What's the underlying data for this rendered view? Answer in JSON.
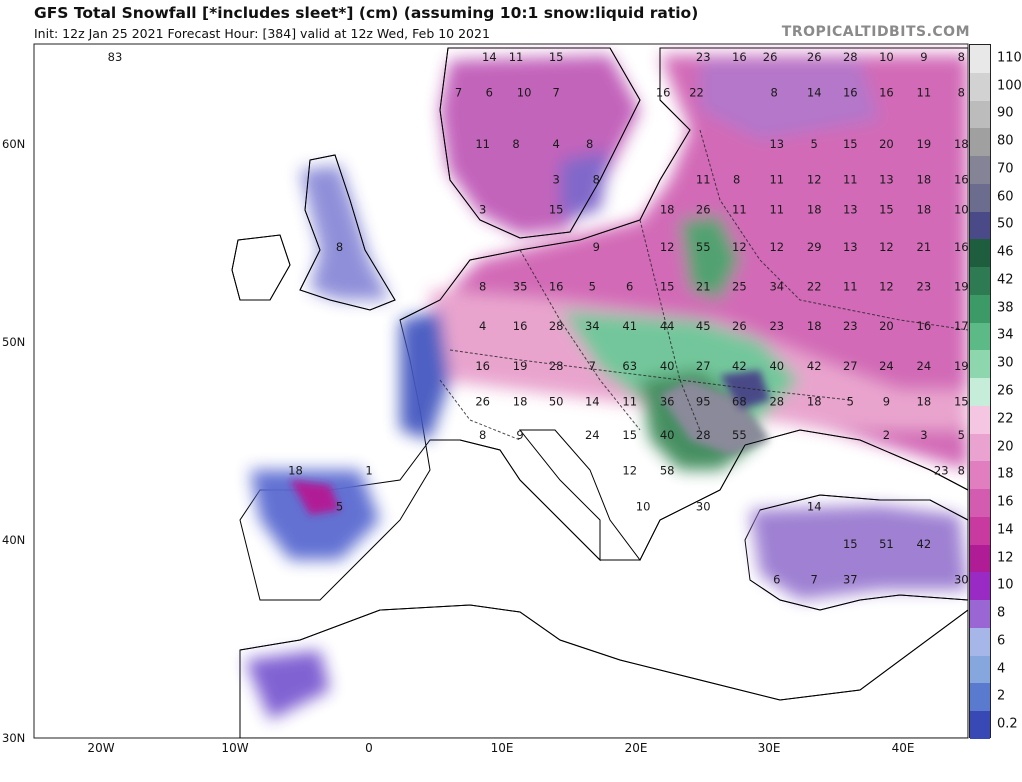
{
  "header": {
    "title": "GFS Total Snowfall [*includes sleet*] (cm) (assuming 10:1 snow:liquid ratio)",
    "subtitle": "Init: 12z Jan 25 2021   Forecast Hour: [384]   valid at 12z Wed, Feb 10 2021",
    "credit": "TROPICALTIDBITS.COM"
  },
  "legend": {
    "levels": [
      {
        "label": "110",
        "color": "#e8e8e8"
      },
      {
        "label": "100",
        "color": "#d2d2d2"
      },
      {
        "label": "90",
        "color": "#bcbcbc"
      },
      {
        "label": "80",
        "color": "#a0a0a0"
      },
      {
        "label": "70",
        "color": "#848496"
      },
      {
        "label": "60",
        "color": "#6c6c8e"
      },
      {
        "label": "50",
        "color": "#4a4a88"
      },
      {
        "label": "46",
        "color": "#1e5e3e"
      },
      {
        "label": "42",
        "color": "#2e7a52"
      },
      {
        "label": "38",
        "color": "#3c9a66"
      },
      {
        "label": "34",
        "color": "#5cba86"
      },
      {
        "label": "30",
        "color": "#8ed6ae"
      },
      {
        "label": "26",
        "color": "#c6ecda"
      },
      {
        "label": "22",
        "color": "#f4c6e2"
      },
      {
        "label": "20",
        "color": "#eaa2d0"
      },
      {
        "label": "18",
        "color": "#e07ec0"
      },
      {
        "label": "16",
        "color": "#d45cb0"
      },
      {
        "label": "14",
        "color": "#c83aa0"
      },
      {
        "label": "12",
        "color": "#b01c96"
      },
      {
        "label": "10",
        "color": "#9a2ac4"
      },
      {
        "label": "8",
        "color": "#9a66d4"
      },
      {
        "label": "6",
        "color": "#a6b6e8"
      },
      {
        "label": "4",
        "color": "#86a6de"
      },
      {
        "label": "2",
        "color": "#5a7ad0"
      },
      {
        "label": "0.2",
        "color": "#3848b4"
      }
    ]
  },
  "axes": {
    "latitudes": [
      "60N",
      "50N",
      "40N",
      "30N"
    ],
    "longitudes": [
      "20W",
      "10W",
      "0",
      "10E",
      "20E",
      "30E",
      "40E"
    ]
  },
  "snow_values": [
    {
      "v": "83",
      "lon": -19,
      "lat": 64.4
    },
    {
      "v": "14",
      "lon": 9,
      "lat": 64.4
    },
    {
      "v": "11",
      "lon": 11,
      "lat": 64.4
    },
    {
      "v": "15",
      "lon": 14,
      "lat": 64.4
    },
    {
      "v": "23",
      "lon": 25,
      "lat": 64.4
    },
    {
      "v": "16",
      "lon": 27.7,
      "lat": 64.4
    },
    {
      "v": "26",
      "lon": 30,
      "lat": 64.4
    },
    {
      "v": "26",
      "lon": 33.3,
      "lat": 64.4
    },
    {
      "v": "28",
      "lon": 36,
      "lat": 64.4
    },
    {
      "v": "10",
      "lon": 38.7,
      "lat": 64.4
    },
    {
      "v": "9",
      "lon": 41.5,
      "lat": 64.4
    },
    {
      "v": "8",
      "lon": 44.3,
      "lat": 64.4
    },
    {
      "v": "7",
      "lon": 6.7,
      "lat": 62.6
    },
    {
      "v": "6",
      "lon": 9,
      "lat": 62.6
    },
    {
      "v": "10",
      "lon": 11.6,
      "lat": 62.6
    },
    {
      "v": "7",
      "lon": 14,
      "lat": 62.6
    },
    {
      "v": "16",
      "lon": 22,
      "lat": 62.6
    },
    {
      "v": "22",
      "lon": 24.5,
      "lat": 62.6
    },
    {
      "v": "8",
      "lon": 30.3,
      "lat": 62.6
    },
    {
      "v": "14",
      "lon": 33.3,
      "lat": 62.6
    },
    {
      "v": "16",
      "lon": 36,
      "lat": 62.6
    },
    {
      "v": "16",
      "lon": 38.7,
      "lat": 62.6
    },
    {
      "v": "11",
      "lon": 41.5,
      "lat": 62.6
    },
    {
      "v": "8",
      "lon": 44.3,
      "lat": 62.6
    },
    {
      "v": "11",
      "lon": 8.5,
      "lat": 60.0
    },
    {
      "v": "8",
      "lon": 11,
      "lat": 60.0
    },
    {
      "v": "4",
      "lon": 14,
      "lat": 60.0
    },
    {
      "v": "8",
      "lon": 16.5,
      "lat": 60.0
    },
    {
      "v": "13",
      "lon": 30.5,
      "lat": 60.0
    },
    {
      "v": "5",
      "lon": 33.3,
      "lat": 60.0
    },
    {
      "v": "15",
      "lon": 36,
      "lat": 60.0
    },
    {
      "v": "20",
      "lon": 38.7,
      "lat": 60.0
    },
    {
      "v": "19",
      "lon": 41.5,
      "lat": 60.0
    },
    {
      "v": "18",
      "lon": 44.3,
      "lat": 60.0
    },
    {
      "v": "3",
      "lon": 14,
      "lat": 58.2
    },
    {
      "v": "8",
      "lon": 17,
      "lat": 58.2
    },
    {
      "v": "11",
      "lon": 25,
      "lat": 58.2
    },
    {
      "v": "8",
      "lon": 27.5,
      "lat": 58.2
    },
    {
      "v": "11",
      "lon": 30.5,
      "lat": 58.2
    },
    {
      "v": "12",
      "lon": 33.3,
      "lat": 58.2
    },
    {
      "v": "11",
      "lon": 36,
      "lat": 58.2
    },
    {
      "v": "13",
      "lon": 38.7,
      "lat": 58.2
    },
    {
      "v": "18",
      "lon": 41.5,
      "lat": 58.2
    },
    {
      "v": "16",
      "lon": 44.3,
      "lat": 58.2
    },
    {
      "v": "3",
      "lon": 8.5,
      "lat": 56.7
    },
    {
      "v": "15",
      "lon": 14,
      "lat": 56.7
    },
    {
      "v": "18",
      "lon": 22.3,
      "lat": 56.7
    },
    {
      "v": "26",
      "lon": 25,
      "lat": 56.7
    },
    {
      "v": "11",
      "lon": 27.7,
      "lat": 56.7
    },
    {
      "v": "11",
      "lon": 30.5,
      "lat": 56.7
    },
    {
      "v": "18",
      "lon": 33.3,
      "lat": 56.7
    },
    {
      "v": "13",
      "lon": 36,
      "lat": 56.7
    },
    {
      "v": "15",
      "lon": 38.7,
      "lat": 56.7
    },
    {
      "v": "18",
      "lon": 41.5,
      "lat": 56.7
    },
    {
      "v": "10",
      "lon": 44.3,
      "lat": 56.7
    },
    {
      "v": "8",
      "lon": -2.2,
      "lat": 54.8
    },
    {
      "v": "9",
      "lon": 17,
      "lat": 54.8
    },
    {
      "v": "12",
      "lon": 22.3,
      "lat": 54.8
    },
    {
      "v": "55",
      "lon": 25,
      "lat": 54.8
    },
    {
      "v": "12",
      "lon": 27.7,
      "lat": 54.8
    },
    {
      "v": "12",
      "lon": 30.5,
      "lat": 54.8
    },
    {
      "v": "29",
      "lon": 33.3,
      "lat": 54.8
    },
    {
      "v": "13",
      "lon": 36,
      "lat": 54.8
    },
    {
      "v": "12",
      "lon": 38.7,
      "lat": 54.8
    },
    {
      "v": "21",
      "lon": 41.5,
      "lat": 54.8
    },
    {
      "v": "16",
      "lon": 44.3,
      "lat": 54.8
    },
    {
      "v": "8",
      "lon": 8.5,
      "lat": 52.8
    },
    {
      "v": "35",
      "lon": 11.3,
      "lat": 52.8
    },
    {
      "v": "16",
      "lon": 14,
      "lat": 52.8
    },
    {
      "v": "5",
      "lon": 16.7,
      "lat": 52.8
    },
    {
      "v": "6",
      "lon": 19.5,
      "lat": 52.8
    },
    {
      "v": "15",
      "lon": 22.3,
      "lat": 52.8
    },
    {
      "v": "21",
      "lon": 25,
      "lat": 52.8
    },
    {
      "v": "25",
      "lon": 27.7,
      "lat": 52.8
    },
    {
      "v": "34",
      "lon": 30.5,
      "lat": 52.8
    },
    {
      "v": "22",
      "lon": 33.3,
      "lat": 52.8
    },
    {
      "v": "11",
      "lon": 36,
      "lat": 52.8
    },
    {
      "v": "12",
      "lon": 38.7,
      "lat": 52.8
    },
    {
      "v": "23",
      "lon": 41.5,
      "lat": 52.8
    },
    {
      "v": "19",
      "lon": 44.3,
      "lat": 52.8
    },
    {
      "v": "4",
      "lon": 8.5,
      "lat": 50.8
    },
    {
      "v": "16",
      "lon": 11.3,
      "lat": 50.8
    },
    {
      "v": "28",
      "lon": 14,
      "lat": 50.8
    },
    {
      "v": "34",
      "lon": 16.7,
      "lat": 50.8
    },
    {
      "v": "41",
      "lon": 19.5,
      "lat": 50.8
    },
    {
      "v": "44",
      "lon": 22.3,
      "lat": 50.8
    },
    {
      "v": "45",
      "lon": 25,
      "lat": 50.8
    },
    {
      "v": "26",
      "lon": 27.7,
      "lat": 50.8
    },
    {
      "v": "23",
      "lon": 30.5,
      "lat": 50.8
    },
    {
      "v": "18",
      "lon": 33.3,
      "lat": 50.8
    },
    {
      "v": "23",
      "lon": 36,
      "lat": 50.8
    },
    {
      "v": "20",
      "lon": 38.7,
      "lat": 50.8
    },
    {
      "v": "16",
      "lon": 41.5,
      "lat": 50.8
    },
    {
      "v": "17",
      "lon": 44.3,
      "lat": 50.8
    },
    {
      "v": "16",
      "lon": 8.5,
      "lat": 48.8
    },
    {
      "v": "19",
      "lon": 11.3,
      "lat": 48.8
    },
    {
      "v": "28",
      "lon": 14,
      "lat": 48.8
    },
    {
      "v": "7",
      "lon": 16.7,
      "lat": 48.8
    },
    {
      "v": "63",
      "lon": 19.5,
      "lat": 48.8
    },
    {
      "v": "40",
      "lon": 22.3,
      "lat": 48.8
    },
    {
      "v": "27",
      "lon": 25,
      "lat": 48.8
    },
    {
      "v": "42",
      "lon": 27.7,
      "lat": 48.8
    },
    {
      "v": "40",
      "lon": 30.5,
      "lat": 48.8
    },
    {
      "v": "42",
      "lon": 33.3,
      "lat": 48.8
    },
    {
      "v": "27",
      "lon": 36,
      "lat": 48.8
    },
    {
      "v": "24",
      "lon": 38.7,
      "lat": 48.8
    },
    {
      "v": "24",
      "lon": 41.5,
      "lat": 48.8
    },
    {
      "v": "19",
      "lon": 44.3,
      "lat": 48.8
    },
    {
      "v": "26",
      "lon": 8.5,
      "lat": 47.0
    },
    {
      "v": "18",
      "lon": 11.3,
      "lat": 47.0
    },
    {
      "v": "50",
      "lon": 14,
      "lat": 47.0
    },
    {
      "v": "14",
      "lon": 16.7,
      "lat": 47.0
    },
    {
      "v": "11",
      "lon": 19.5,
      "lat": 47.0
    },
    {
      "v": "36",
      "lon": 22.3,
      "lat": 47.0
    },
    {
      "v": "95",
      "lon": 25,
      "lat": 47.0
    },
    {
      "v": "68",
      "lon": 27.7,
      "lat": 47.0
    },
    {
      "v": "28",
      "lon": 30.5,
      "lat": 47.0
    },
    {
      "v": "18",
      "lon": 33.3,
      "lat": 47.0
    },
    {
      "v": "5",
      "lon": 36,
      "lat": 47.0
    },
    {
      "v": "9",
      "lon": 38.7,
      "lat": 47.0
    },
    {
      "v": "18",
      "lon": 41.5,
      "lat": 47.0
    },
    {
      "v": "15",
      "lon": 44.3,
      "lat": 47.0
    },
    {
      "v": "8",
      "lon": 8.5,
      "lat": 45.3
    },
    {
      "v": "9",
      "lon": 11.3,
      "lat": 45.3
    },
    {
      "v": "24",
      "lon": 16.7,
      "lat": 45.3
    },
    {
      "v": "15",
      "lon": 19.5,
      "lat": 45.3
    },
    {
      "v": "40",
      "lon": 22.3,
      "lat": 45.3
    },
    {
      "v": "28",
      "lon": 25,
      "lat": 45.3
    },
    {
      "v": "55",
      "lon": 27.7,
      "lat": 45.3
    },
    {
      "v": "2",
      "lon": 38.7,
      "lat": 45.3
    },
    {
      "v": "3",
      "lon": 41.5,
      "lat": 45.3
    },
    {
      "v": "5",
      "lon": 44.3,
      "lat": 45.3
    },
    {
      "v": "18",
      "lon": -5.5,
      "lat": 43.5
    },
    {
      "v": "1",
      "lon": 0,
      "lat": 43.5
    },
    {
      "v": "12",
      "lon": 19.5,
      "lat": 43.5
    },
    {
      "v": "58",
      "lon": 22.3,
      "lat": 43.5
    },
    {
      "v": "8",
      "lon": 44.3,
      "lat": 43.5
    },
    {
      "v": "23",
      "lon": 42.8,
      "lat": 43.5
    },
    {
      "v": "5",
      "lon": -2.2,
      "lat": 41.7
    },
    {
      "v": "10",
      "lon": 20.5,
      "lat": 41.7
    },
    {
      "v": "30",
      "lon": 25,
      "lat": 41.7
    },
    {
      "v": "14",
      "lon": 33.3,
      "lat": 41.7
    },
    {
      "v": "15",
      "lon": 36,
      "lat": 39.8
    },
    {
      "v": "51",
      "lon": 38.7,
      "lat": 39.8
    },
    {
      "v": "42",
      "lon": 41.5,
      "lat": 39.8
    },
    {
      "v": "6",
      "lon": 30.5,
      "lat": 38.0
    },
    {
      "v": "7",
      "lon": 33.3,
      "lat": 38.0
    },
    {
      "v": "37",
      "lon": 36,
      "lat": 38.0
    },
    {
      "v": "30",
      "lon": 44.3,
      "lat": 38.0
    }
  ]
}
